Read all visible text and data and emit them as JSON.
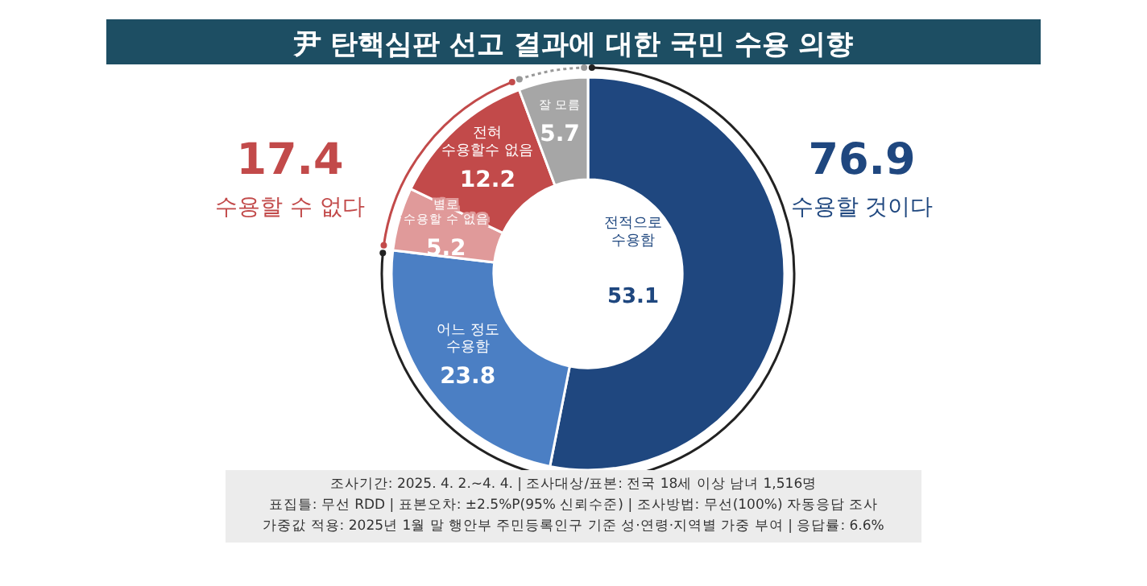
{
  "chart_data": {
    "type": "donut",
    "title": "尹 탄핵심판 선고 결과에 대한 국민 수용 의향",
    "categories": [
      "전적으로\n수용함",
      "어느 정도\n수용함",
      "별로\n수용할 수 없음",
      "전혀\n수용할수 없음",
      "잘 모름"
    ],
    "values": [
      53.1,
      23.8,
      5.2,
      12.2,
      5.7
    ],
    "colors": [
      "#1f477f",
      "#4b7fc4",
      "#e09a9a",
      "#c24a4a",
      "#a6a6a6"
    ],
    "data_labels": true,
    "annotations": [
      "17.4",
      "수용할 수 없다",
      "76.9",
      "수용할 것이다",
      "조사기간: 2025. 4. 2.~4. 4. | 조사대상/표본: 전국 18세 이상 남녀 1,516명",
      "표집틀: 무선 RDD | 표본오차: ±2.5%P(95% 신뢰수준) | 조사방법: 무선(100%) 자동응답 조사",
      "가중값 적용: 2025년 1월 말 행안부 주민등록인구 기준 성·연령·지역별 가중 부여 | 응답률: 6.6%"
    ]
  }
}
